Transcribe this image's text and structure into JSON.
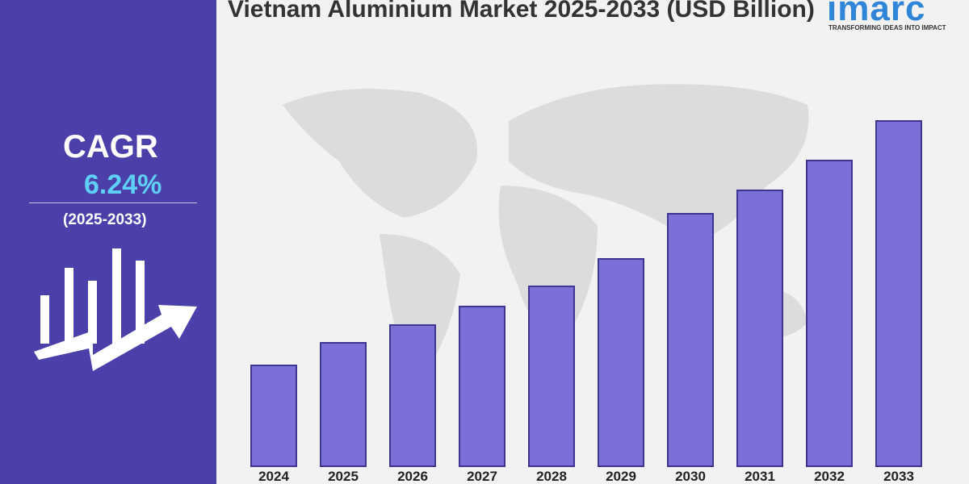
{
  "sidebar": {
    "label": "CAGR",
    "value": "6.24%",
    "period": "(2025-2033)"
  },
  "brand": {
    "name": "imarc",
    "tagline": "TRANSFORMING IDEAS INTO IMPACT"
  },
  "chart_data": {
    "type": "bar",
    "title": "Vietnam Aluminium Market 2025-2033 (USD Billion)",
    "categories": [
      "2024",
      "2025",
      "2026",
      "2027",
      "2028",
      "2029",
      "2030",
      "2031",
      "2032",
      "2033"
    ],
    "values": [
      125,
      153,
      175,
      198,
      223,
      257,
      313,
      342,
      379,
      428
    ],
    "color": "#7b6fd8",
    "ylim": [
      0,
      440
    ],
    "grid": false
  }
}
